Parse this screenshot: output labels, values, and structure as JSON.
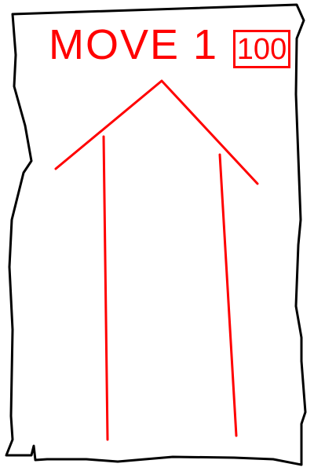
{
  "card": {
    "title": "MOVE 1",
    "cost": "100",
    "direction": "up",
    "ink_color": "#ff0000",
    "outline_color": "#000000",
    "background": "#ffffff",
    "icon": "up-arrow-icon"
  }
}
